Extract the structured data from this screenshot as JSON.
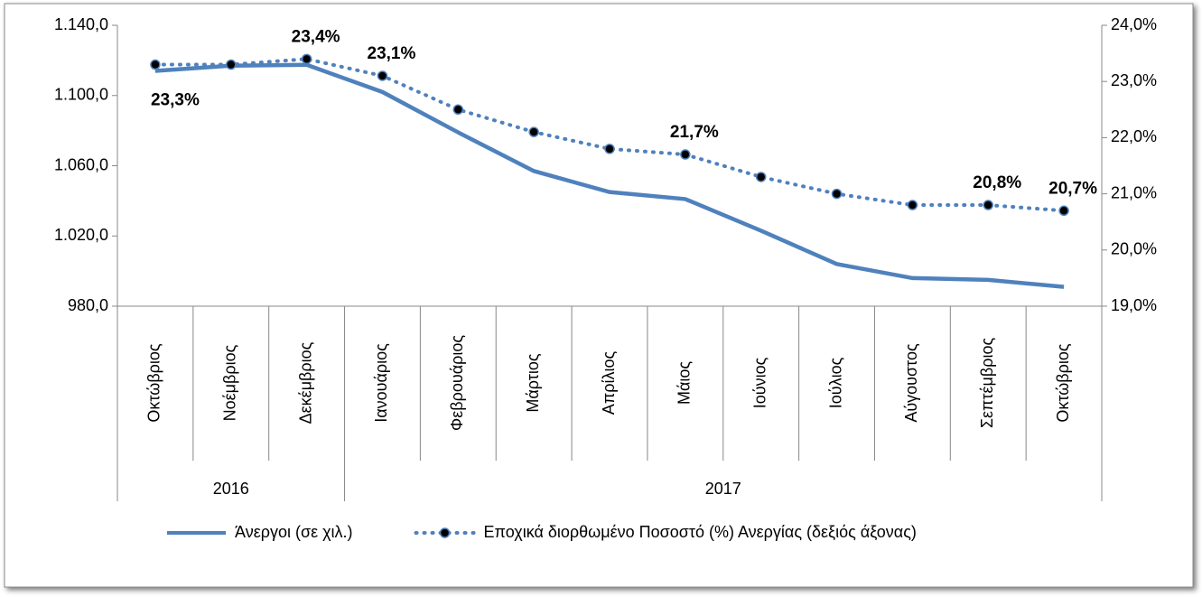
{
  "chart_data": {
    "type": "line",
    "categories": [
      "Οκτώβριος",
      "Νοέμβριος",
      "Δεκέμβριος",
      "Ιανουάριος",
      "Φεβρουάριος",
      "Μάρτιος",
      "Απρίλιος",
      "Μάιος",
      "Ιούνιος",
      "Ιούλιος",
      "Αύγουστος",
      "Σεπτέμβριος",
      "Οκτώβριος"
    ],
    "groups": [
      {
        "label": "2016",
        "count": 3
      },
      {
        "label": "2017",
        "count": 10
      }
    ],
    "series": [
      {
        "name": "Άνεργοι (σε χιλ.)",
        "color": "#4f81bd",
        "style": "solid",
        "values": [
          1114,
          1117,
          1117.5,
          1102,
          1079,
          1057,
          1045,
          1041,
          1023,
          1004,
          996,
          995,
          991
        ]
      },
      {
        "name": "Εποχικά διορθωμένο Ποσοστό (%) Ανεργίας (δεξιός άξονας)",
        "color": "#4f81bd",
        "style": "dotted",
        "marker_color": "#000000",
        "axis": "y2",
        "values": [
          23.3,
          23.3,
          23.4,
          23.1,
          22.5,
          22.1,
          21.8,
          21.7,
          21.3,
          21.0,
          20.8,
          20.8,
          20.7
        ],
        "value_labels": [
          "23,3%",
          null,
          "23,4%",
          "23,1%",
          null,
          null,
          null,
          "21,7%",
          null,
          null,
          null,
          "20,8%",
          "20,7%"
        ]
      }
    ],
    "ylim": [
      980,
      1140
    ],
    "yticks": [
      {
        "value": 980,
        "label": "980,0"
      },
      {
        "value": 1020,
        "label": "1.020,0"
      },
      {
        "value": 1060,
        "label": "1.060,0"
      },
      {
        "value": 1100,
        "label": "1.100,0"
      },
      {
        "value": 1140,
        "label": "1.140,0"
      }
    ],
    "y2lim": [
      19,
      24
    ],
    "y2ticks": [
      {
        "value": 19,
        "label": "19,0%"
      },
      {
        "value": 20,
        "label": "20,0%"
      },
      {
        "value": 21,
        "label": "21,0%"
      },
      {
        "value": 22,
        "label": "22,0%"
      },
      {
        "value": 23,
        "label": "23,0%"
      },
      {
        "value": 24,
        "label": "24,0%"
      }
    ],
    "grid": false,
    "legend": "bottom"
  }
}
